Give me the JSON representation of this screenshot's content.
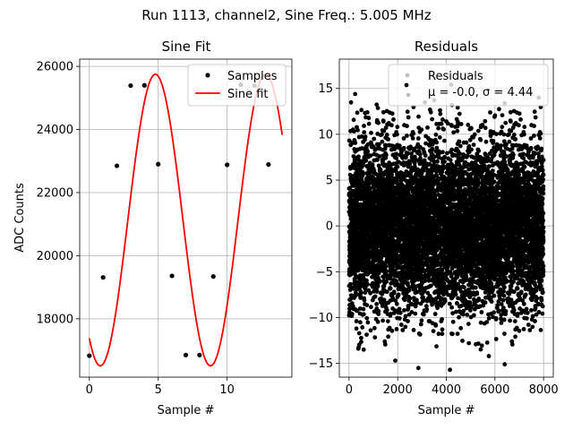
{
  "figure": {
    "suptitle": "Run 1113, channel2, Sine Freq.: 5.005 MHz"
  },
  "chart_data": [
    {
      "type": "line",
      "title": "Sine Fit",
      "xlabel": "Sample #",
      "ylabel": "ADC Counts",
      "xlim": [
        -0.7,
        14.7
      ],
      "ylim": [
        16150,
        26230
      ],
      "xticks": [
        0,
        5,
        10
      ],
      "yticks": [
        18000,
        20000,
        22000,
        24000,
        26000
      ],
      "grid": true,
      "legend_position": "top-right",
      "series": [
        {
          "name": "Samples",
          "kind": "scatter",
          "color": "#000000",
          "x": [
            0,
            1,
            2,
            3,
            4,
            5,
            6,
            7,
            8,
            9,
            10,
            11,
            12,
            13
          ],
          "y": [
            16830,
            19310,
            22850,
            25390,
            25400,
            22900,
            19360,
            16850,
            16850,
            19340,
            22880,
            25420,
            25390,
            22890
          ]
        },
        {
          "name": "Sine fit",
          "kind": "line",
          "color": "#ff0000",
          "x_range": [
            0,
            14
          ],
          "offset": 21130,
          "amplitude": 4620,
          "period": 7.998,
          "phase": -2.196
        }
      ]
    },
    {
      "type": "scatter",
      "title": "Residuals",
      "xlabel": "Sample #",
      "ylabel": "",
      "xlim": [
        -400,
        8400
      ],
      "ylim": [
        -16.5,
        18.2
      ],
      "xticks": [
        0,
        2000,
        4000,
        6000,
        8000
      ],
      "yticks": [
        -15,
        -10,
        -5,
        0,
        5,
        10,
        15
      ],
      "grid": true,
      "legend_position": "top-right",
      "series": [
        {
          "name": "Residuals",
          "label_line2": "μ = -0.0, σ = 4.44",
          "color": "#000000",
          "n_points": 8000,
          "mean": -0.0,
          "std": 4.44,
          "highlights": [
            {
              "x": 250,
              "y": 14.4
            },
            {
              "x": 4200,
              "y": 15.4
            },
            {
              "x": 3500,
              "y": 13.7
            },
            {
              "x": 2850,
              "y": -15.5
            },
            {
              "x": 4150,
              "y": -15.7
            },
            {
              "x": 6400,
              "y": -15.1
            },
            {
              "x": 1900,
              "y": -14.7
            },
            {
              "x": 5750,
              "y": -14.2
            },
            {
              "x": 600,
              "y": -13.5
            },
            {
              "x": 7800,
              "y": 14.0
            }
          ]
        }
      ]
    }
  ]
}
